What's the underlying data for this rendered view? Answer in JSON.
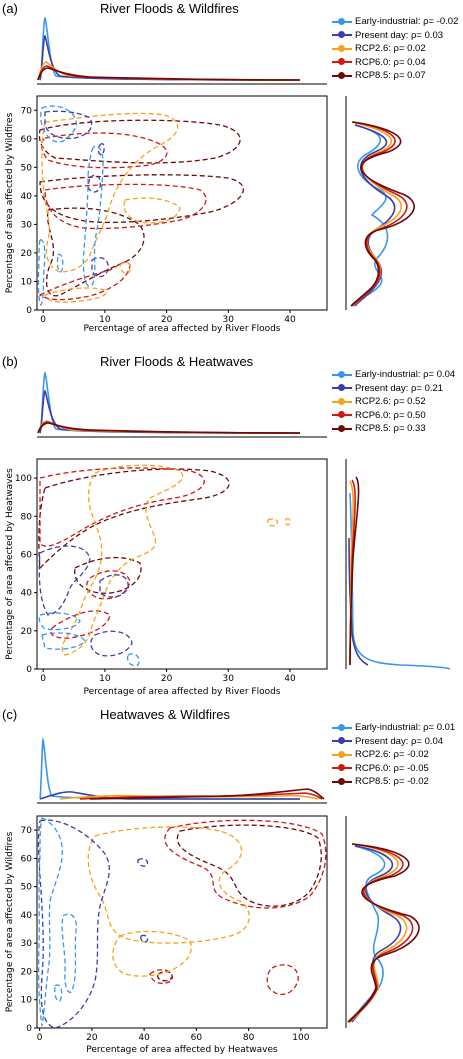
{
  "colors": {
    "early": "#3a96ec",
    "present": "#3b3fa6",
    "rcp26": "#f5a21e",
    "rcp60": "#cf1a14",
    "rcp85": "#6b0a07"
  },
  "panels": [
    {
      "label": "(a)",
      "title": "River Floods & Wildfires",
      "legend": [
        "Early-industrial: ρ= -0.02",
        "Present day: ρ= 0.03",
        "RCP2.6: ρ= 0.02",
        "RCP6.0: ρ= 0.04",
        "RCP8.5: ρ= 0.07"
      ],
      "xlabel": "Percentage of area affected by River Floods",
      "ylabel": "Percentage of area affected by Wildfires",
      "xticks": [
        "0",
        "10",
        "20",
        "30",
        "40"
      ],
      "yticks": [
        "0",
        "10",
        "20",
        "30",
        "40",
        "50",
        "60",
        "70"
      ]
    },
    {
      "label": "(b)",
      "title": "River Floods & Heatwaves",
      "legend": [
        "Early-industrial: ρ= 0.04",
        "Present day: ρ= 0.21",
        "RCP2.6: ρ= 0.52",
        "RCP6.0: ρ= 0.50",
        "RCP8.5: ρ= 0.33"
      ],
      "xlabel": "Percentage of area affected by River Floods",
      "ylabel": "Percentage of area affected by Heatwaves",
      "xticks": [
        "0",
        "10",
        "20",
        "30",
        "40"
      ],
      "yticks": [
        "0",
        "20",
        "40",
        "60",
        "80",
        "100"
      ]
    },
    {
      "label": "(c)",
      "title": "Heatwaves & Wildfires",
      "legend": [
        "Early-industrial: ρ= 0.01",
        "Present day: ρ= 0.04",
        "RCP2.6: ρ= -0.02",
        "RCP6.0: ρ= -0.05",
        "RCP8.5: ρ= -0.02"
      ],
      "xlabel": "Percentage of area affected by Heatwaves",
      "ylabel": "Percentage of area affected by Wildfires",
      "xticks": [
        "0",
        "20",
        "40",
        "60",
        "80",
        "100"
      ],
      "yticks": [
        "0",
        "10",
        "20",
        "30",
        "40",
        "50",
        "60",
        "70"
      ]
    }
  ],
  "chart_data": [
    {
      "type": "kde-contour",
      "title": "River Floods & Wildfires",
      "xlabel": "Percentage of area affected by River Floods",
      "ylabel": "Percentage of area affected by Wildfires",
      "xlim": [
        -1,
        46
      ],
      "ylim": [
        0,
        75
      ],
      "series": [
        {
          "name": "Early-industrial",
          "rho": -0.02
        },
        {
          "name": "Present day",
          "rho": 0.03
        },
        {
          "name": "RCP2.6",
          "rho": 0.02
        },
        {
          "name": "RCP6.0",
          "rho": 0.04
        },
        {
          "name": "RCP8.5",
          "rho": 0.07
        }
      ],
      "top_marginal": {
        "axis": "River Floods",
        "peak_x": 1
      },
      "right_marginal": {
        "axis": "Wildfires",
        "modes_y": [
          13,
          35,
          58
        ]
      }
    },
    {
      "type": "kde-contour",
      "title": "River Floods & Heatwaves",
      "xlabel": "Percentage of area affected by River Floods",
      "ylabel": "Percentage of area affected by Heatwaves",
      "xlim": [
        -1,
        46
      ],
      "ylim": [
        0,
        110
      ],
      "series": [
        {
          "name": "Early-industrial",
          "rho": 0.04
        },
        {
          "name": "Present day",
          "rho": 0.21
        },
        {
          "name": "RCP2.6",
          "rho": 0.52
        },
        {
          "name": "RCP6.0",
          "rho": 0.5
        },
        {
          "name": "RCP8.5",
          "rho": 0.33
        }
      ],
      "top_marginal": {
        "axis": "River Floods",
        "peak_x": 1
      },
      "right_marginal": {
        "axis": "Heatwaves",
        "peak_y": 1
      }
    },
    {
      "type": "kde-contour",
      "title": "Heatwaves & Wildfires",
      "xlabel": "Percentage of area affected by Heatwaves",
      "ylabel": "Percentage of area affected by Wildfires",
      "xlim": [
        -1,
        110
      ],
      "ylim": [
        0,
        75
      ],
      "series": [
        {
          "name": "Early-industrial",
          "rho": 0.01
        },
        {
          "name": "Present day",
          "rho": 0.04
        },
        {
          "name": "RCP2.6",
          "rho": -0.02
        },
        {
          "name": "RCP6.0",
          "rho": -0.05
        },
        {
          "name": "RCP8.5",
          "rho": -0.02
        }
      ],
      "top_marginal": {
        "axis": "Heatwaves",
        "peak_x": 1
      },
      "right_marginal": {
        "axis": "Wildfires",
        "modes_y": [
          13,
          35,
          58
        ]
      }
    }
  ]
}
